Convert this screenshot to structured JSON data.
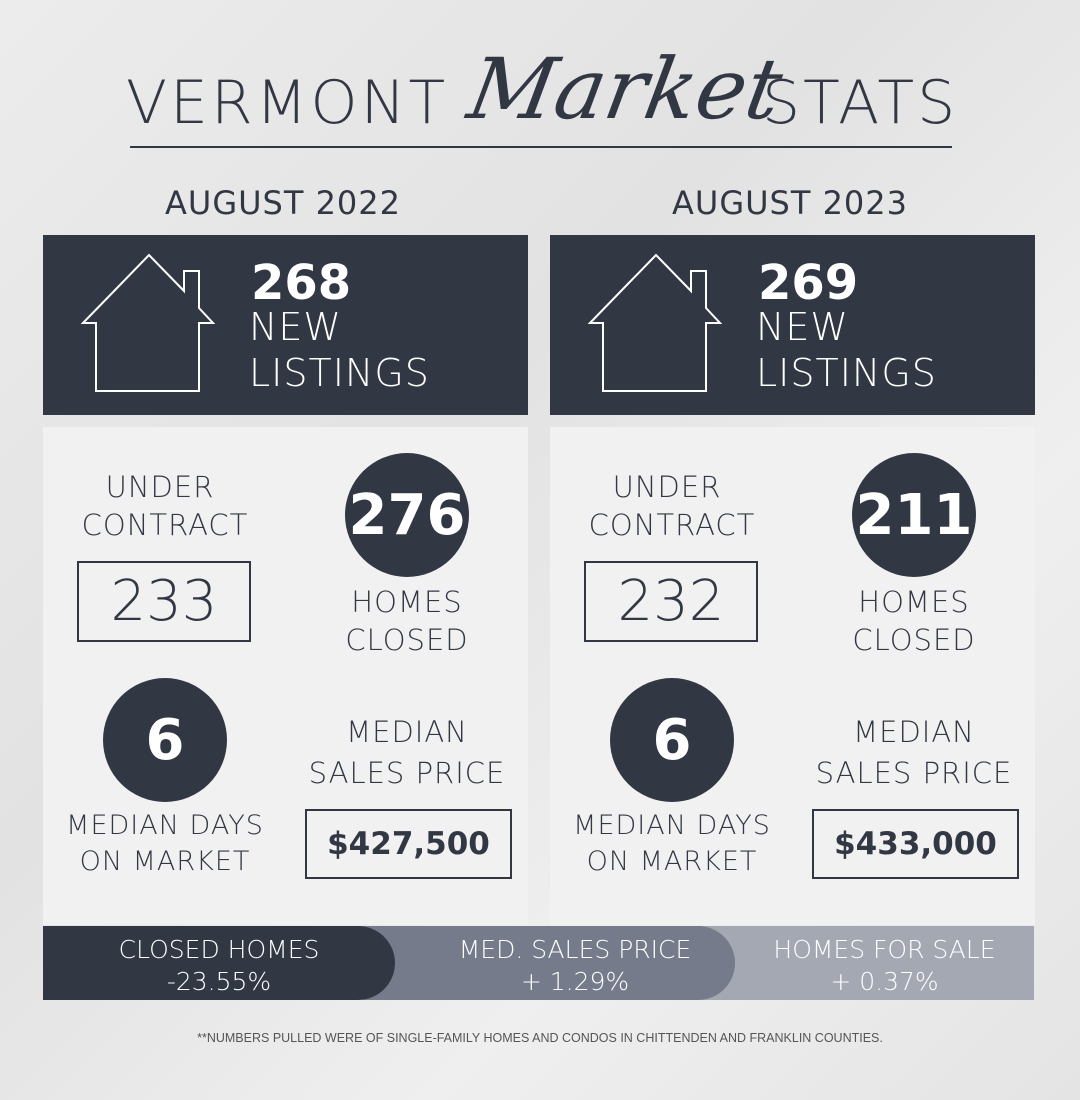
{
  "title": {
    "left": "VERMONT",
    "script": "Market",
    "right": "STATS"
  },
  "columns": [
    {
      "period": "AUGUST 2022",
      "new_listings": {
        "value": "268",
        "line1": "NEW",
        "line2": "LISTINGS"
      },
      "under_contract": {
        "line1": "UNDER",
        "line2": "CONTRACT",
        "value": "233"
      },
      "homes_closed": {
        "value": "276",
        "line1": "HOMES",
        "line2": "CLOSED"
      },
      "days_on_market": {
        "value": "6",
        "line1": "MEDIAN DAYS",
        "line2": "ON MARKET"
      },
      "median_price": {
        "line1": "MEDIAN",
        "line2": "SALES PRICE",
        "value": "$427,500"
      }
    },
    {
      "period": "AUGUST 2023",
      "new_listings": {
        "value": "269",
        "line1": "NEW",
        "line2": "LISTINGS"
      },
      "under_contract": {
        "line1": "UNDER",
        "line2": "CONTRACT",
        "value": "232"
      },
      "homes_closed": {
        "value": "211",
        "line1": "HOMES",
        "line2": "CLOSED"
      },
      "days_on_market": {
        "value": "6",
        "line1": "MEDIAN DAYS",
        "line2": "ON MARKET"
      },
      "median_price": {
        "line1": "MEDIAN",
        "line2": "SALES PRICE",
        "value": "$433,000"
      }
    }
  ],
  "changes": [
    {
      "label": "CLOSED HOMES",
      "value": "-23.55%",
      "color": "#323744"
    },
    {
      "label": "MED. SALES PRICE",
      "value": "+ 1.29%",
      "color": "#757b8a"
    },
    {
      "label": "HOMES FOR SALE",
      "value": "+ 0.37%",
      "color": "#a4a8b3"
    }
  ],
  "footnote": "**NUMBERS PULLED WERE OF SINGLE-FAMILY HOMES AND CONDOS IN CHITTENDEN AND FRANKLIN COUNTIES.",
  "colors": {
    "dark": "#323744",
    "panel": "#f1f1f1"
  }
}
